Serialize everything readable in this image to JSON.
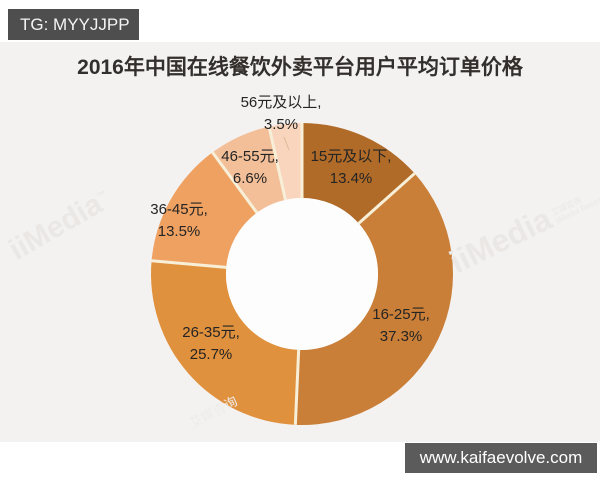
{
  "badge": {
    "label": "TG: MYYJJPP"
  },
  "header": {
    "title": "2016年中国在线餐饮外卖平台用户平均订单价格"
  },
  "footer": {
    "url": "www.kaifaevolve.com"
  },
  "watermark": {
    "brand": "iiMedia",
    "tm": "™",
    "sub_cn": "艾媒咨询",
    "sub_en": "iiMedia Research"
  },
  "colors": {
    "badge_bg": "#4e4e4e",
    "footer_bg": "#5b5b5b",
    "panel_bg": "#f4f2f1",
    "hole": "#fdfdfd",
    "divider": "#f7efd8",
    "title_text": "#332f2d",
    "label_text": "#242424"
  },
  "chart_data": {
    "type": "pie",
    "donut": true,
    "title": "2016年中国在线餐饮外卖平台用户平均订单价格",
    "direction": "clockwise",
    "start_angle_deg": 0,
    "label_format": "{name}, {value}%",
    "series": [
      {
        "name": "15元及以下",
        "value": 13.4,
        "color": "#b06b28"
      },
      {
        "name": "16-25元",
        "value": 37.3,
        "color": "#c97f38"
      },
      {
        "name": "26-35元",
        "value": 25.7,
        "color": "#e0913d"
      },
      {
        "name": "36-45元",
        "value": 13.5,
        "color": "#efa161"
      },
      {
        "name": "46-55元",
        "value": 6.6,
        "color": "#f3bf98"
      },
      {
        "name": "56元及以上",
        "value": 3.5,
        "color": "#f8d5bc"
      }
    ]
  }
}
